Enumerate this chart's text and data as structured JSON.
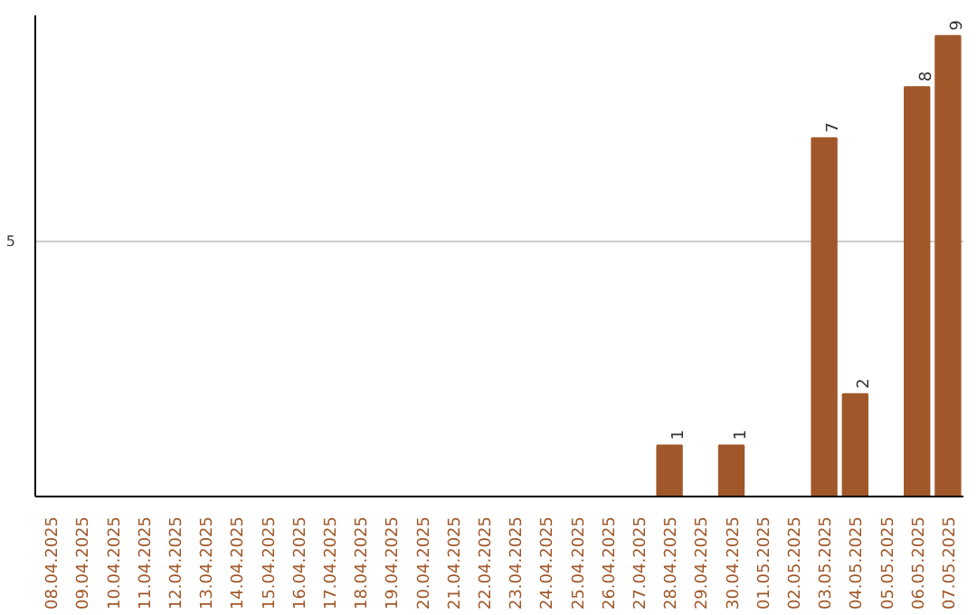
{
  "chart_data": {
    "type": "bar",
    "categories": [
      "08.04.2025",
      "09.04.2025",
      "10.04.2025",
      "11.04.2025",
      "12.04.2025",
      "13.04.2025",
      "14.04.2025",
      "15.04.2025",
      "16.04.2025",
      "17.04.2025",
      "18.04.2025",
      "19.04.2025",
      "20.04.2025",
      "21.04.2025",
      "22.04.2025",
      "23.04.2025",
      "24.04.2025",
      "25.04.2025",
      "26.04.2025",
      "27.04.2025",
      "28.04.2025",
      "29.04.2025",
      "30.04.2025",
      "01.05.2025",
      "02.05.2025",
      "03.05.2025",
      "04.05.2025",
      "05.05.2025",
      "06.05.2025",
      "07.05.2025"
    ],
    "values": [
      null,
      null,
      null,
      null,
      null,
      null,
      null,
      null,
      null,
      null,
      null,
      null,
      null,
      null,
      null,
      null,
      null,
      null,
      null,
      null,
      1,
      null,
      1,
      null,
      null,
      7,
      2,
      null,
      8,
      9
    ],
    "color": "#a0582a",
    "ylim": [
      0,
      9.4
    ],
    "yticks": [
      5
    ],
    "grid": "y",
    "data_labels": true
  }
}
